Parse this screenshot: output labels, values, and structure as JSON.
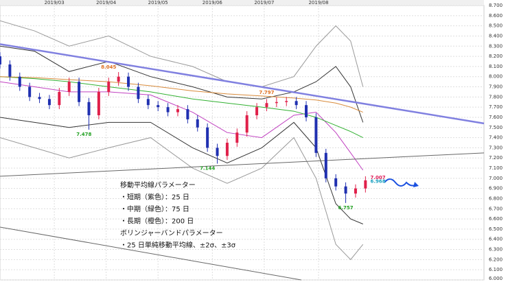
{
  "chart_data": {
    "type": "candlestick",
    "xlim": [
      0,
      196
    ],
    "ylim": [
      6.0,
      8.7
    ],
    "xticks": [
      {
        "value": 22,
        "label": "2019/03"
      },
      {
        "value": 43,
        "label": "2019/04"
      },
      {
        "value": 64,
        "label": "2019/05"
      },
      {
        "value": 86,
        "label": "2019/06"
      },
      {
        "value": 107,
        "label": "2019/07"
      },
      {
        "value": 129,
        "label": "2019/08"
      }
    ],
    "yticks": [
      {
        "value": 6.0,
        "label": "6.000"
      },
      {
        "value": 6.1,
        "label": "6.100"
      },
      {
        "value": 6.2,
        "label": "6.200"
      },
      {
        "value": 6.3,
        "label": "6.300"
      },
      {
        "value": 6.4,
        "label": "6.400"
      },
      {
        "value": 6.5,
        "label": "6.500"
      },
      {
        "value": 6.6,
        "label": "6.600"
      },
      {
        "value": 6.7,
        "label": "6.700"
      },
      {
        "value": 6.8,
        "label": "6.800"
      },
      {
        "value": 6.9,
        "label": "6.900"
      },
      {
        "value": 7.0,
        "label": "7.000"
      },
      {
        "value": 7.1,
        "label": "7.100"
      },
      {
        "value": 7.2,
        "label": "7.200"
      },
      {
        "value": 7.3,
        "label": "7.300"
      },
      {
        "value": 7.4,
        "label": "7.400"
      },
      {
        "value": 7.5,
        "label": "7.500"
      },
      {
        "value": 7.6,
        "label": "7.600"
      },
      {
        "value": 7.7,
        "label": "7.700"
      },
      {
        "value": 7.8,
        "label": "7.800"
      },
      {
        "value": 7.9,
        "label": "7.900"
      },
      {
        "value": 8.0,
        "label": "8.000"
      },
      {
        "value": 8.1,
        "label": "8.100"
      },
      {
        "value": 8.2,
        "label": "8.200"
      },
      {
        "value": 8.3,
        "label": "8.300"
      },
      {
        "value": 8.4,
        "label": "8.400"
      },
      {
        "value": 8.5,
        "label": "8.500"
      },
      {
        "value": 8.6,
        "label": "8.600"
      },
      {
        "value": 8.7,
        "label": "8.700"
      }
    ],
    "grid": true,
    "candles": {
      "up_color": "#e0204a",
      "down_color": "#2030b0",
      "x": [
        0,
        4,
        8,
        12,
        16,
        20,
        24,
        28,
        32,
        36,
        40,
        44,
        48,
        52,
        56,
        60,
        64,
        68,
        72,
        76,
        80,
        84,
        88,
        92,
        96,
        100,
        104,
        108,
        112,
        116,
        120,
        124,
        128,
        132,
        136,
        140,
        144,
        148
      ],
      "open": [
        8.2,
        8.12,
        8.0,
        7.9,
        7.8,
        7.78,
        7.72,
        7.85,
        7.95,
        7.75,
        7.62,
        7.85,
        7.95,
        8.0,
        7.9,
        7.78,
        7.72,
        7.7,
        7.65,
        7.68,
        7.58,
        7.5,
        7.3,
        7.22,
        7.35,
        7.45,
        7.62,
        7.7,
        7.74,
        7.75,
        7.76,
        7.72,
        7.6,
        7.25,
        7.0,
        6.92,
        6.85,
        6.9
      ],
      "high": [
        8.24,
        8.16,
        8.04,
        7.94,
        7.84,
        7.82,
        7.89,
        7.99,
        7.99,
        7.79,
        7.89,
        7.99,
        8.045,
        8.04,
        7.94,
        7.82,
        7.76,
        7.74,
        7.72,
        7.72,
        7.62,
        7.54,
        7.34,
        7.39,
        7.49,
        7.66,
        7.74,
        7.78,
        7.797,
        7.8,
        7.8,
        7.76,
        7.64,
        7.29,
        7.04,
        6.96,
        6.94,
        7.02
      ],
      "low": [
        8.08,
        7.96,
        7.86,
        7.76,
        7.74,
        7.68,
        7.68,
        7.81,
        7.71,
        7.478,
        7.58,
        7.81,
        7.91,
        7.86,
        7.74,
        7.68,
        7.66,
        7.61,
        7.61,
        7.54,
        7.46,
        7.26,
        7.144,
        7.18,
        7.31,
        7.41,
        7.58,
        7.66,
        7.7,
        7.71,
        7.68,
        7.56,
        7.21,
        6.96,
        6.88,
        6.757,
        6.81,
        6.86
      ],
      "close": [
        8.12,
        8.0,
        7.9,
        7.8,
        7.78,
        7.72,
        7.85,
        7.95,
        7.75,
        7.62,
        7.85,
        7.95,
        8.0,
        7.9,
        7.78,
        7.72,
        7.7,
        7.65,
        7.68,
        7.58,
        7.5,
        7.3,
        7.22,
        7.35,
        7.45,
        7.62,
        7.7,
        7.74,
        7.75,
        7.76,
        7.72,
        7.6,
        7.25,
        7.0,
        6.92,
        6.85,
        6.9,
        6.98
      ]
    },
    "series": [
      {
        "color": "#999999",
        "x": [
          0,
          14,
          28,
          44,
          61,
          78,
          92,
          106,
          119,
          128,
          136,
          142,
          147
        ],
        "values": [
          8.55,
          8.45,
          8.3,
          8.4,
          8.2,
          8.1,
          7.95,
          7.9,
          8.0,
          8.3,
          8.5,
          8.35,
          7.9
        ]
      },
      {
        "color": "#333333",
        "x": [
          0,
          14,
          28,
          44,
          61,
          78,
          92,
          106,
          119,
          128,
          136,
          142,
          147
        ],
        "values": [
          8.3,
          8.25,
          8.05,
          8.15,
          8.0,
          7.9,
          7.8,
          7.78,
          7.85,
          7.95,
          8.1,
          7.9,
          7.55
        ]
      },
      {
        "color": "#c040c0",
        "x": [
          0,
          14,
          28,
          44,
          61,
          78,
          92,
          106,
          119,
          128,
          136,
          142,
          147
        ],
        "values": [
          7.95,
          7.9,
          7.85,
          7.85,
          7.82,
          7.65,
          7.45,
          7.4,
          7.62,
          7.65,
          7.45,
          7.25,
          7.08
        ]
      },
      {
        "color": "#30b030",
        "x": [
          0,
          14,
          28,
          44,
          61,
          78,
          92,
          106,
          119,
          128,
          136,
          142,
          147
        ],
        "values": [
          8.0,
          7.98,
          7.95,
          7.9,
          7.85,
          7.78,
          7.74,
          7.7,
          7.66,
          7.6,
          7.52,
          7.46,
          7.4
        ]
      },
      {
        "color": "#d88a3a",
        "x": [
          0,
          14,
          28,
          44,
          61,
          78,
          92,
          106,
          119,
          128,
          136,
          142,
          147
        ],
        "values": [
          8.0,
          7.99,
          7.97,
          7.95,
          7.91,
          7.86,
          7.83,
          7.81,
          7.79,
          7.77,
          7.74,
          7.7,
          7.65
        ]
      },
      {
        "color": "#333333",
        "x": [
          0,
          14,
          28,
          44,
          61,
          78,
          92,
          106,
          119,
          128,
          136,
          142,
          147
        ],
        "values": [
          7.6,
          7.55,
          7.5,
          7.55,
          7.55,
          7.3,
          7.15,
          7.3,
          7.55,
          7.3,
          6.75,
          6.6,
          6.55
        ]
      },
      {
        "color": "#999999",
        "x": [
          0,
          14,
          28,
          44,
          61,
          78,
          92,
          106,
          119,
          128,
          136,
          142,
          147
        ],
        "values": [
          7.4,
          7.3,
          7.2,
          7.3,
          7.4,
          7.1,
          6.95,
          7.1,
          7.4,
          7.0,
          6.35,
          6.2,
          6.35
        ]
      },
      {
        "color": "#8080e0",
        "x": [
          0,
          196
        ],
        "values": [
          8.32,
          7.54
        ]
      },
      {
        "color": "#666666",
        "x": [
          0,
          196
        ],
        "values": [
          7.02,
          7.25
        ]
      },
      {
        "color": "#666666",
        "x": [
          0,
          122
        ],
        "values": [
          6.52,
          6.0
        ]
      }
    ],
    "annotations": [
      {
        "x": 44,
        "value": 8.045,
        "color": "#e07020"
      },
      {
        "x": 34,
        "value": 7.478,
        "color": "#20a020"
      },
      {
        "x": 84,
        "value": 7.144,
        "color": "#20a020"
      },
      {
        "x": 108,
        "value": 7.797,
        "color": "#e07020"
      },
      {
        "x": 140,
        "value": 6.757,
        "color": "#20a020"
      },
      {
        "x": 150,
        "value": 7.007,
        "color": "#e0205a"
      },
      {
        "x": 150,
        "value": 6.968,
        "color": "#1aa0c0"
      }
    ],
    "notes": [
      "移動平均線パラメーター",
      "・短期（紫色）：25 日",
      "・中期（緑色）：75 日",
      "・長期（橙色）：200 日",
      "ボリンジャーバンドパラメーター",
      "・25 日単純移動平均線、±2σ、±3σ"
    ]
  }
}
